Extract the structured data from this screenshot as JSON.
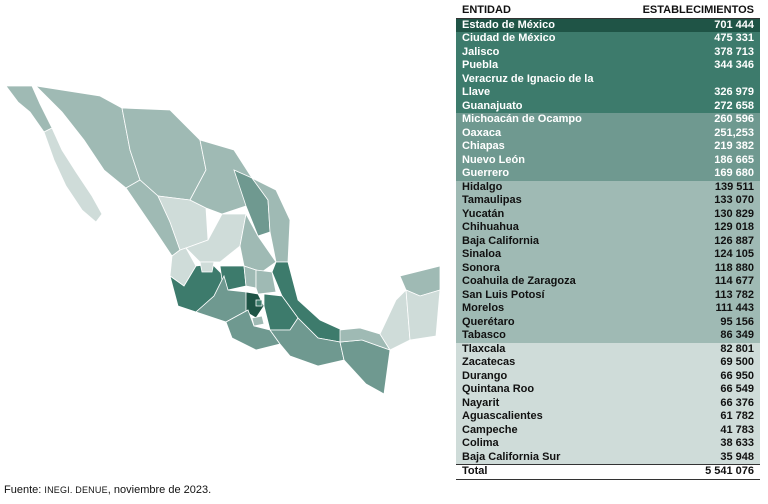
{
  "table": {
    "header": [
      "ENTIDAD",
      "ESTABLECIMIENTOS"
    ],
    "rows": [
      [
        "Estado de México",
        "701 444"
      ],
      [
        "Ciudad de México",
        "475 331"
      ],
      [
        "Jalisco",
        "378 713"
      ],
      [
        "Puebla",
        "344 346"
      ],
      [
        "Veracruz de Ignacio de la Llave",
        "326 979"
      ],
      [
        "Guanajuato",
        "272 658"
      ],
      [
        "Michoacán de Ocampo",
        "260 596"
      ],
      [
        "Oaxaca",
        "251,253"
      ],
      [
        "Chiapas",
        "219 382"
      ],
      [
        "Nuevo León",
        "186 665"
      ],
      [
        "Guerrero",
        "169 680"
      ],
      [
        "Hidalgo",
        "139 511"
      ],
      [
        "Tamaulipas",
        "133 070"
      ],
      [
        "Yucatán",
        "130 829"
      ],
      [
        "Chihuahua",
        "129 018"
      ],
      [
        "Baja California",
        "126 887"
      ],
      [
        "Sinaloa",
        "124 105"
      ],
      [
        "Sonora",
        "118 880"
      ],
      [
        "Coahuila de Zaragoza",
        "114 677"
      ],
      [
        "San Luis Potosí",
        "113 782"
      ],
      [
        "Morelos",
        "111 443"
      ],
      [
        "Querétaro",
        "95 156"
      ],
      [
        "Tabasco",
        "86 349"
      ],
      [
        "Tlaxcala",
        "82 801"
      ],
      [
        "Zacatecas",
        "69 500"
      ],
      [
        "Durango",
        "66 950"
      ],
      [
        "Quintana Roo",
        "66 549"
      ],
      [
        "Nayarit",
        "66 376"
      ],
      [
        "Aguascalientes",
        "61 782"
      ],
      [
        "Campeche",
        "41 783"
      ],
      [
        "Colima",
        "38 633"
      ],
      [
        "Baja California Sur",
        "35 948"
      ]
    ],
    "total": [
      "Total",
      "5 541 076"
    ]
  },
  "source": {
    "prefix": "Fuente:",
    "org": "INEGI. DENUE",
    "date": ", noviembre de 2023."
  }
}
